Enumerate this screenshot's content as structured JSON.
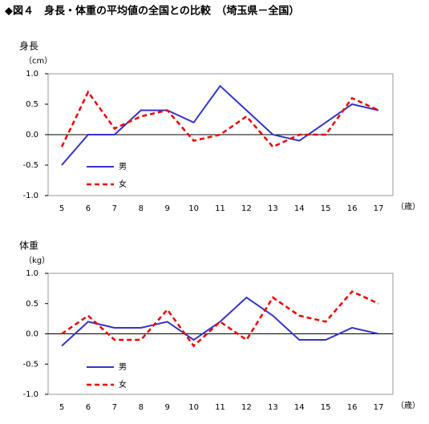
{
  "title": "◆図４　身長・体重の平均値の全国との比較　（埼玉県－全国）",
  "chart_data": [
    {
      "type": "line",
      "title": "身長",
      "y_unit": "（cm）",
      "x_unit": "（歳）",
      "categories": [
        "5",
        "6",
        "7",
        "8",
        "9",
        "10",
        "11",
        "12",
        "13",
        "14",
        "15",
        "16",
        "17"
      ],
      "series": [
        {
          "name": "男",
          "color": "#3333cc",
          "style": "solid",
          "values": [
            -0.5,
            0.0,
            0.0,
            0.4,
            0.4,
            0.2,
            0.8,
            0.4,
            0.0,
            -0.1,
            0.2,
            0.5,
            0.4
          ]
        },
        {
          "name": "女",
          "color": "#ee0000",
          "style": "dashed",
          "values": [
            -0.2,
            0.7,
            0.1,
            0.3,
            0.4,
            -0.1,
            0.0,
            0.3,
            -0.2,
            0.0,
            0.0,
            0.6,
            0.4
          ]
        }
      ],
      "ylim": [
        -1.0,
        1.0
      ],
      "yticks": [
        {
          "value": -1.0,
          "label": "-1.0"
        },
        -0.5,
        {
          "value": 0.0,
          "label": "0.0"
        },
        0.5,
        {
          "value": 1.0,
          "label": "1.0"
        }
      ]
    },
    {
      "type": "line",
      "title": "体重",
      "y_unit": "（kg）",
      "x_unit": "（歳）",
      "categories": [
        "5",
        "6",
        "7",
        "8",
        "9",
        "10",
        "11",
        "12",
        "13",
        "14",
        "15",
        "16",
        "17"
      ],
      "series": [
        {
          "name": "男",
          "color": "#3333cc",
          "style": "solid",
          "values": [
            -0.2,
            0.2,
            0.1,
            0.1,
            0.2,
            -0.1,
            0.2,
            0.6,
            0.3,
            -0.1,
            -0.1,
            0.1,
            0.0
          ]
        },
        {
          "name": "女",
          "color": "#ee0000",
          "style": "dashed",
          "values": [
            0.0,
            0.3,
            -0.1,
            -0.1,
            0.4,
            -0.2,
            0.2,
            -0.1,
            0.6,
            0.3,
            0.2,
            0.7,
            0.5
          ]
        }
      ],
      "ylim": [
        -1.0,
        1.0
      ],
      "yticks": [
        {
          "value": -1.0,
          "label": "-1.0"
        },
        -0.5,
        {
          "value": 0.0,
          "label": "0.0"
        },
        0.5,
        {
          "value": 1.0,
          "label": "1.0"
        }
      ]
    }
  ]
}
